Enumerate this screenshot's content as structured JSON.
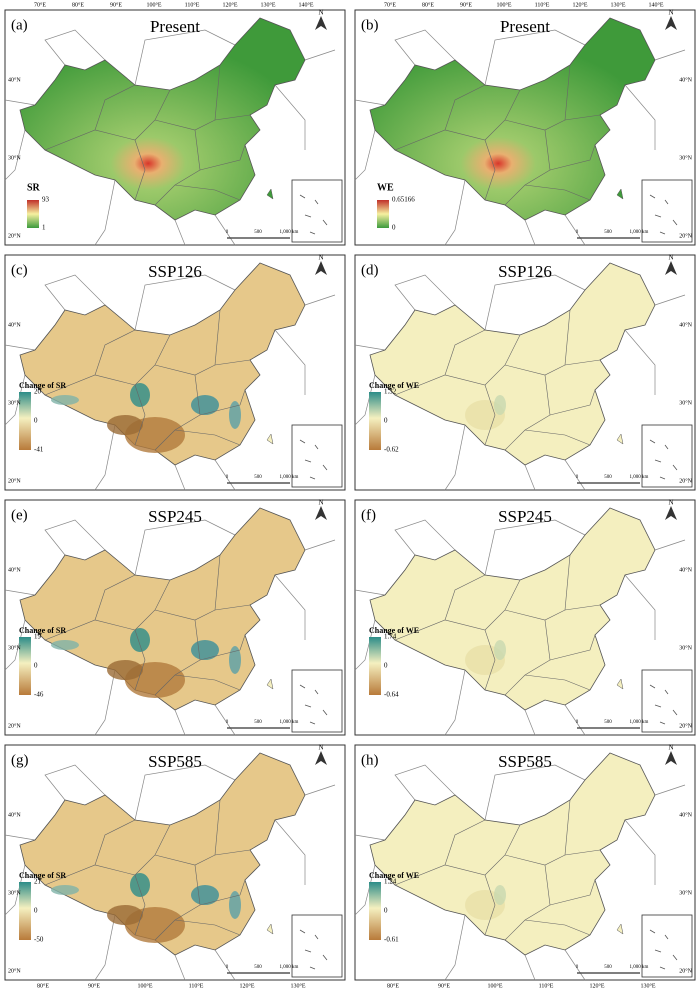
{
  "axes": {
    "top_lon": [
      "70°E",
      "80°E",
      "90°E",
      "100°E",
      "110°E",
      "120°E",
      "130°E",
      "140°E"
    ],
    "bottom_lon": [
      "80°E",
      "90°E",
      "100°E",
      "110°E",
      "120°E",
      "130°E"
    ],
    "lat": [
      "40°N",
      "30°N",
      "20°N"
    ]
  },
  "north": "N",
  "scale_bar": [
    "0",
    "500",
    "1,000 km"
  ],
  "panels": [
    {
      "label": "(a)",
      "title": "Present",
      "legend": {
        "title": "SR",
        "labels": [
          "93",
          "1"
        ]
      }
    },
    {
      "label": "(b)",
      "title": "Present",
      "legend": {
        "title": "WE",
        "labels": [
          "0.65166",
          "0"
        ]
      }
    },
    {
      "label": "(c)",
      "title": "SSP126",
      "legend": {
        "title": "Change of SR",
        "labels": [
          "20",
          "0",
          "-41"
        ]
      }
    },
    {
      "label": "(d)",
      "title": "SSP126",
      "legend": {
        "title": "Change of WE",
        "labels": [
          "1.32",
          "0",
          "-0.62"
        ]
      }
    },
    {
      "label": "(e)",
      "title": "SSP245",
      "legend": {
        "title": "Change of SR",
        "labels": [
          "19",
          "0",
          "-46"
        ]
      }
    },
    {
      "label": "(f)",
      "title": "SSP245",
      "legend": {
        "title": "Change of WE",
        "labels": [
          "1.74",
          "0",
          "-0.64"
        ]
      }
    },
    {
      "label": "(g)",
      "title": "SSP585",
      "legend": {
        "title": "Change of SR",
        "labels": [
          "21",
          "0",
          "-50"
        ]
      }
    },
    {
      "label": "(h)",
      "title": "SSP585",
      "legend": {
        "title": "Change of WE",
        "labels": [
          "1.24",
          "0",
          "-0.61"
        ]
      }
    }
  ]
}
